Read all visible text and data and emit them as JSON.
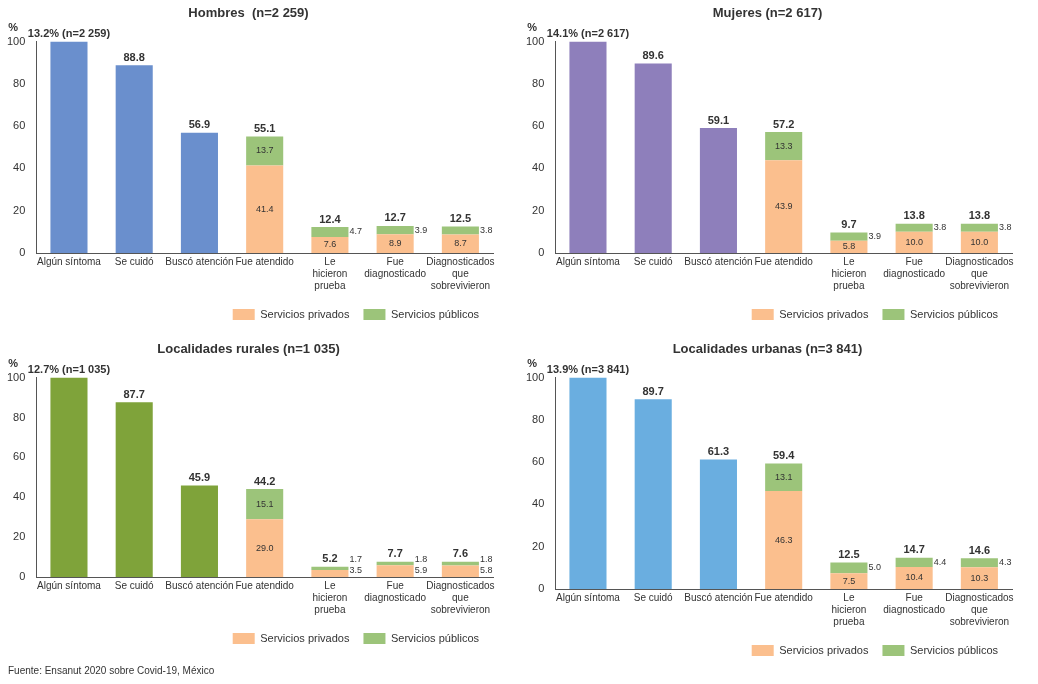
{
  "chart_data": [
    {
      "type": "bar",
      "title": "Hombres  (n=2 259)",
      "ylabel": "%",
      "annotations": [
        {
          "text": "13.2% (n=2 259)",
          "x": "Algún síntoma",
          "y": 100
        }
      ],
      "categories": [
        "Algún síntoma",
        "Se cuidó",
        "Buscó atención",
        "Fue atendido",
        "Le hicieron prueba",
        "Fue diagnosticado",
        "Diagnosticados que sobrevivieron"
      ],
      "stacked": true,
      "ylim": [
        0,
        100
      ],
      "yticks": [
        0,
        20,
        40,
        60,
        80,
        100
      ],
      "grid": false,
      "legend": "bottom right",
      "series": [
        {
          "color": "#6a8fcd",
          "values": [
            100,
            88.8,
            56.9,
            null,
            null,
            null,
            null
          ],
          "value_labels": [
            null,
            "88.8",
            "56.9",
            null,
            null,
            null,
            null
          ]
        },
        {
          "name": "Servicios privados",
          "color": "#fbbf8e",
          "values": [
            null,
            null,
            null,
            41.4,
            7.6,
            8.9,
            8.7
          ],
          "value_labels": [
            null,
            null,
            null,
            "41.4",
            "7.6",
            "8.9",
            "8.7"
          ]
        },
        {
          "name": "Servicios públicos",
          "color": "#9cc47a",
          "values": [
            null,
            null,
            null,
            13.7,
            4.7,
            3.9,
            3.8
          ],
          "value_labels": [
            null,
            null,
            null,
            "13.7",
            "4.7",
            "3.9",
            "3.8"
          ]
        }
      ],
      "totals": [
        null,
        null,
        null,
        "55.1",
        "12.4",
        "12.7",
        "12.5"
      ]
    },
    {
      "type": "bar",
      "title": "Mujeres (n=2 617)",
      "ylabel": "%",
      "annotations": [
        {
          "text": "14.1% (n=2 617)",
          "x": "Algún síntoma",
          "y": 100
        }
      ],
      "categories": [
        "Algún síntoma",
        "Se cuidó",
        "Buscó atención",
        "Fue atendido",
        "Le hicieron prueba",
        "Fue diagnosticado",
        "Diagnosticados que sobrevivieron"
      ],
      "stacked": true,
      "ylim": [
        0,
        100
      ],
      "yticks": [
        0,
        20,
        40,
        60,
        80,
        100
      ],
      "grid": false,
      "legend": "bottom right",
      "series": [
        {
          "color": "#8e7fbb",
          "values": [
            100,
            89.6,
            59.1,
            null,
            null,
            null,
            null
          ],
          "value_labels": [
            null,
            "89.6",
            "59.1",
            null,
            null,
            null,
            null
          ]
        },
        {
          "name": "Servicios privados",
          "color": "#fbbf8e",
          "values": [
            null,
            null,
            null,
            43.9,
            5.8,
            10.0,
            10.0
          ],
          "value_labels": [
            null,
            null,
            null,
            "43.9",
            "5.8",
            "10.0",
            "10.0"
          ]
        },
        {
          "name": "Servicios públicos",
          "color": "#9cc47a",
          "values": [
            null,
            null,
            null,
            13.3,
            3.9,
            3.8,
            3.8
          ],
          "value_labels": [
            null,
            null,
            null,
            "13.3",
            "3.9",
            "3.8",
            "3.8"
          ]
        }
      ],
      "totals": [
        null,
        null,
        null,
        "57.2",
        "9.7",
        "13.8",
        "13.8"
      ]
    },
    {
      "type": "bar",
      "title": "Localidades rurales (n=1 035)",
      "ylabel": "%",
      "categories": [
        "Algún síntoma",
        "Se cuidó",
        "Buscó atención",
        "Fue atendido",
        "Le hicieron prueba",
        "Fue diagnosticado",
        "Diagnosticados que sobrevivieron"
      ],
      "stacked": true,
      "ylim": [
        0,
        100
      ],
      "yticks": [
        0,
        20,
        40,
        60,
        80,
        100
      ],
      "grid": false,
      "legend": "bottom right",
      "annotations": [
        {
          "text": "12.7% (n=1 035)",
          "x": "Algún síntoma",
          "y": 100
        },
        "Fuente: Ensanut 2020 sobre Covid-19, México"
      ],
      "series": [
        {
          "color": "#7fa33a",
          "values": [
            100,
            87.7,
            45.9,
            null,
            null,
            null,
            null
          ],
          "value_labels": [
            null,
            "87.7",
            "45.9",
            null,
            null,
            null,
            null
          ]
        },
        {
          "name": "Servicios privados",
          "color": "#fbbf8e",
          "values": [
            null,
            null,
            null,
            29.0,
            3.5,
            5.9,
            5.8
          ],
          "value_labels": [
            null,
            null,
            null,
            "29.0",
            "3.5",
            "5.9",
            "5.8"
          ]
        },
        {
          "name": "Servicios públicos",
          "color": "#9cc47a",
          "values": [
            null,
            null,
            null,
            15.1,
            1.7,
            1.8,
            1.8
          ],
          "value_labels": [
            null,
            null,
            null,
            "15.1",
            "1.7",
            "1.8",
            "1.8"
          ]
        }
      ],
      "totals": [
        null,
        null,
        null,
        "44.2",
        "5.2",
        "7.7",
        "7.6"
      ]
    },
    {
      "type": "bar",
      "title": "Localidades urbanas (n=3 841)",
      "ylabel": "%",
      "annotations": [
        {
          "text": "13.9% (n=3 841)",
          "x": "Algún síntoma",
          "y": 100
        }
      ],
      "categories": [
        "Algún síntoma",
        "Se cuidó",
        "Buscó atención",
        "Fue atendido",
        "Le hicieron prueba",
        "Fue diagnosticado",
        "Diagnosticados que sobrevivieron"
      ],
      "stacked": true,
      "ylim": [
        0,
        100
      ],
      "yticks": [
        0,
        20,
        40,
        60,
        80,
        100
      ],
      "grid": false,
      "legend": "bottom right",
      "series": [
        {
          "color": "#6aaee0",
          "values": [
            100,
            89.7,
            61.3,
            null,
            null,
            null,
            null
          ],
          "value_labels": [
            null,
            "89.7",
            "61.3",
            null,
            null,
            null,
            null
          ]
        },
        {
          "name": "Servicios privados",
          "color": "#fbbf8e",
          "values": [
            null,
            null,
            null,
            46.3,
            7.5,
            10.4,
            10.3
          ],
          "value_labels": [
            null,
            null,
            null,
            "46.3",
            "7.5",
            "10.4",
            "10.3"
          ]
        },
        {
          "name": "Servicios públicos",
          "color": "#9cc47a",
          "values": [
            null,
            null,
            null,
            13.1,
            5.0,
            4.4,
            4.3
          ],
          "value_labels": [
            null,
            null,
            null,
            "13.1",
            "5.0",
            "4.4",
            "4.3"
          ]
        }
      ],
      "totals": [
        null,
        null,
        null,
        "59.4",
        "12.5",
        "14.7",
        "14.6"
      ]
    }
  ]
}
